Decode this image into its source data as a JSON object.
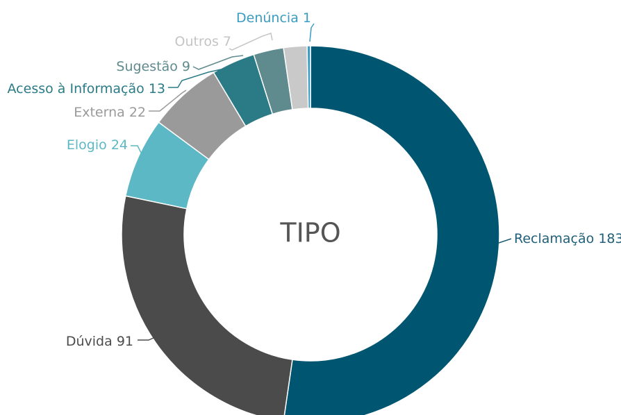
{
  "chart_data": {
    "type": "donut",
    "title": "TIPO",
    "categories": [
      "Reclamação",
      "Dúvida",
      "Elogio",
      "Externa",
      "Acesso à Informação",
      "Sugestão",
      "Outros",
      "Denúncia"
    ],
    "values": [
      183,
      91,
      24,
      22,
      13,
      9,
      7,
      1
    ],
    "colors": [
      "#005670",
      "#4b4b4b",
      "#5cb8c5",
      "#9a9a9a",
      "#2b7b86",
      "#5f8a8e",
      "#c9c9c9",
      "#3a9cc2"
    ],
    "label_colors": [
      "#1f5f7a",
      "#4b4b4b",
      "#5cb8c5",
      "#9a9a9a",
      "#2b7b86",
      "#5f8a8e",
      "#c4c4c4",
      "#3a9cc2"
    ]
  }
}
